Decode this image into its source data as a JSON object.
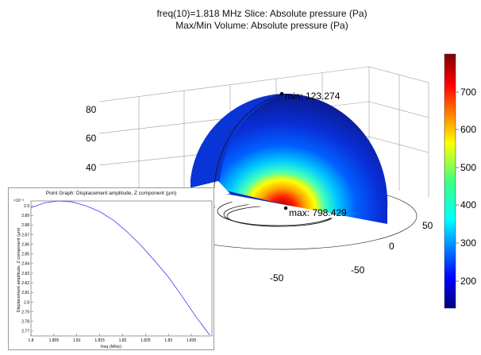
{
  "title": {
    "line1": "freq(10)=1.818 MHz   Slice: Absolute pressure (Pa)",
    "line2": "Max/Min Volume: Absolute pressure (Pa)"
  },
  "main_plot": {
    "z_ticks": [
      "80",
      "60",
      "40"
    ],
    "x_ticks": [
      "-50",
      "0",
      "50"
    ],
    "y_ticks": [
      "-50"
    ],
    "annotations": {
      "min_label": "min: 123.274",
      "max_label": "max: 798.429"
    },
    "colorbar": {
      "ticks": [
        "700",
        "600",
        "500",
        "400",
        "300",
        "200"
      ],
      "range": [
        123.274,
        798.429
      ],
      "colormap": "jet"
    }
  },
  "chart_data": {
    "type": "line",
    "title": "Point Graph: Displacement amplitude, Z component (µm)",
    "xlabel": "freq (MHz)",
    "ylabel": "Displacement amplitude, Z component (µm)",
    "y_exponent_label": "×10⁻³",
    "xlim": [
      1.8,
      1.8395
    ],
    "ylim": [
      2.765,
      2.905
    ],
    "x_ticks": [
      "1.8",
      "1.805",
      "1.81",
      "1.815",
      "1.82",
      "1.825",
      "1.83",
      "1.835"
    ],
    "y_ticks": [
      "2.9",
      "2.89",
      "2.88",
      "2.87",
      "2.86",
      "2.85",
      "2.84",
      "2.83",
      "2.82",
      "2.81",
      "2.8",
      "2.79",
      "2.78",
      "2.77"
    ],
    "series": [
      {
        "color": "#3a3aff",
        "x": [
          1.8,
          1.803,
          1.806,
          1.809,
          1.812,
          1.815,
          1.818,
          1.821,
          1.824,
          1.827,
          1.83,
          1.833,
          1.836,
          1.839
        ],
        "y": [
          2.898,
          2.903,
          2.905,
          2.904,
          2.9,
          2.894,
          2.885,
          2.873,
          2.859,
          2.843,
          2.826,
          2.806,
          2.785,
          2.766
        ]
      }
    ]
  }
}
